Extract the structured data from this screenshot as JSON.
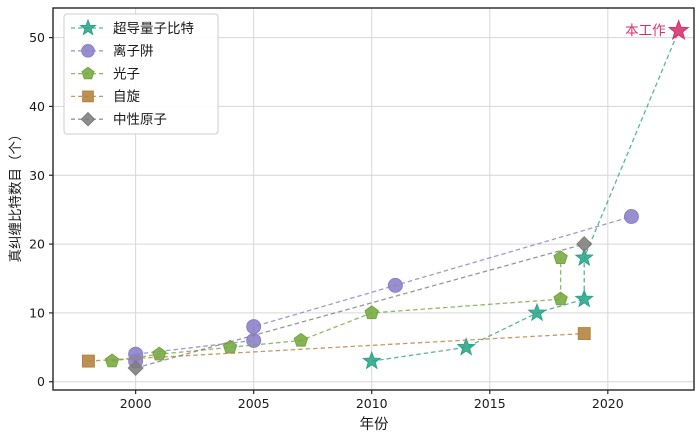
{
  "chart_data": {
    "type": "line",
    "title": "",
    "xlabel": "年份",
    "ylabel": "真纠缠比特数目（个）",
    "xlim": [
      1996.5,
      2023.65
    ],
    "ylim": [
      -1.2,
      54.3
    ],
    "xticks": [
      2000,
      2005,
      2010,
      2015,
      2020
    ],
    "yticks": [
      0,
      10,
      20,
      30,
      40,
      50
    ],
    "grid": true,
    "legend_position": "upper-left",
    "line_style": "dashed",
    "series": [
      {
        "name": "超导量子比特",
        "marker": "star",
        "color": "#2ba58a",
        "points": [
          [
            2010,
            3
          ],
          [
            2014,
            5
          ],
          [
            2017,
            10
          ],
          [
            2019,
            12
          ],
          [
            2019,
            18
          ]
        ],
        "extends_to_annotation": true
      },
      {
        "name": "离子阱",
        "marker": "circle",
        "color": "#8b80c8",
        "points": [
          [
            2000,
            3
          ],
          [
            2000,
            4
          ],
          [
            2005,
            6
          ],
          [
            2005,
            8
          ],
          [
            2011,
            14
          ],
          [
            2021,
            24
          ]
        ]
      },
      {
        "name": "光子",
        "marker": "pentagon",
        "color": "#74a83f",
        "points": [
          [
            1999,
            3
          ],
          [
            2001,
            4
          ],
          [
            2004,
            5
          ],
          [
            2007,
            6
          ],
          [
            2010,
            10
          ],
          [
            2018,
            12
          ],
          [
            2018,
            18
          ]
        ]
      },
      {
        "name": "自旋",
        "marker": "square",
        "color": "#b3823d",
        "points": [
          [
            1998,
            3
          ],
          [
            2019,
            7
          ]
        ]
      },
      {
        "name": "中性原子",
        "marker": "diamond",
        "color": "#7d7d7d",
        "points": [
          [
            2000,
            2
          ],
          [
            2019,
            20
          ]
        ]
      }
    ],
    "annotation": {
      "label": "本工作",
      "x": 2023,
      "y": 51,
      "marker": "star",
      "color": "#d6316b"
    },
    "axis_color": "#262626",
    "grid_color": "#d6d6d6",
    "tick_label_color": "#1a1a1a"
  }
}
